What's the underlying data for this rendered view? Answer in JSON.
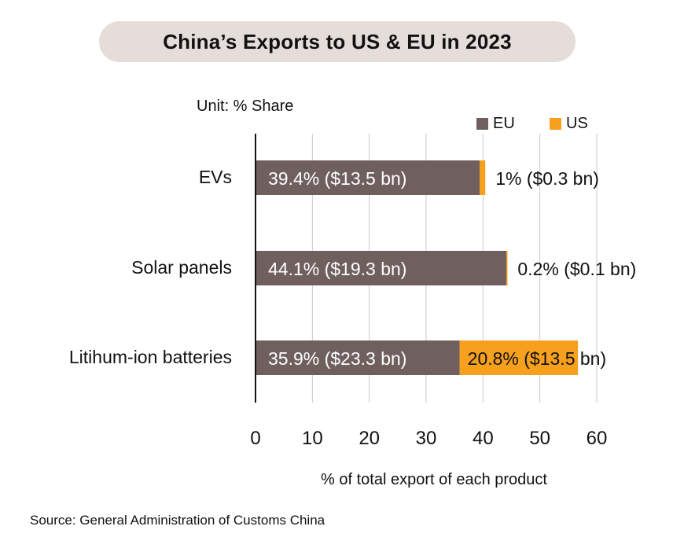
{
  "title": "China’s Exports to US & EU in 2023",
  "unit_label": "Unit: % Share",
  "source": "Source: General Administration of Customs China",
  "colors": {
    "eu": "#6f605f",
    "us": "#f7a01d",
    "title_bg": "#e5ddd9",
    "grid": "#c9c9c9"
  },
  "chart_data": {
    "type": "bar",
    "orientation": "horizontal",
    "stacked": true,
    "title": "China’s Exports to US & EU in 2023",
    "xlabel": "% of total export of each product",
    "ylabel": "",
    "xlim": [
      0,
      60
    ],
    "xticks": [
      0,
      10,
      20,
      30,
      40,
      50,
      60
    ],
    "grid": "vertical",
    "legend_position": "top-right",
    "categories": [
      "EVs",
      "Solar panels",
      "Litihum-ion batteries"
    ],
    "series": [
      {
        "name": "EU",
        "values": [
          39.4,
          44.1,
          35.9
        ],
        "labels": [
          "39.4% ($13.5 bn)",
          "44.1% ($19.3 bn)",
          "35.9% ($23.3 bn)"
        ]
      },
      {
        "name": "US",
        "values": [
          1,
          0.2,
          20.8
        ],
        "labels": [
          "1% ($0.3 bn)",
          "0.2% ($0.1 bn)",
          "20.8% ($13.5 bn)"
        ]
      }
    ]
  }
}
